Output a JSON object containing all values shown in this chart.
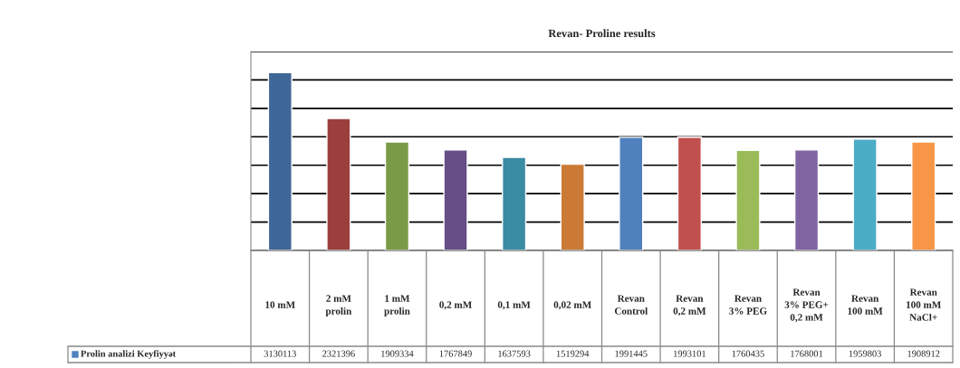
{
  "chart_data": {
    "type": "bar",
    "title": "Revan- Proline results",
    "categories": [
      "10 mM",
      "2 mM prolin",
      "1 mM prolin",
      "0,2 mM",
      "0,1 mM",
      "0,02 mM",
      "Revan Control",
      "Revan 0,2 mM",
      "Revan 3% PEG",
      "Revan 3% PEG+ 0,2 mM",
      "Revan 100 mM",
      "Revan 100 mM NaCl+"
    ],
    "series": [
      {
        "name": "Prolin analizi Keyfiyyət",
        "color": "#4f81bd",
        "colors": [
          "#3f6797",
          "#9b3f3c",
          "#7b9a47",
          "#654f86",
          "#3a8ca2",
          "#cb7a36",
          "#4f81bd",
          "#c0504d",
          "#9bbb59",
          "#8064a2",
          "#4bacc6",
          "#f79646"
        ],
        "values": [
          3130113,
          2321396,
          1909334,
          1767849,
          1637593,
          1519294,
          1991445,
          1993101,
          1760435,
          1768001,
          1959803,
          1908912
        ]
      }
    ],
    "ylim": [
      0,
      3500000
    ],
    "yticks": [
      {
        "value": 0,
        "label": null
      },
      {
        "value": 500000,
        "label": null
      },
      {
        "value": 1000000,
        "label": null
      },
      {
        "value": 1500000,
        "label": null
      },
      {
        "value": 2000000,
        "label": null
      },
      {
        "value": 2500000,
        "label": null
      },
      {
        "value": 3000000,
        "label": null
      },
      {
        "value": 3500000,
        "label": null
      }
    ],
    "grid": "y",
    "legend": "bottom left",
    "data_labels": true
  }
}
